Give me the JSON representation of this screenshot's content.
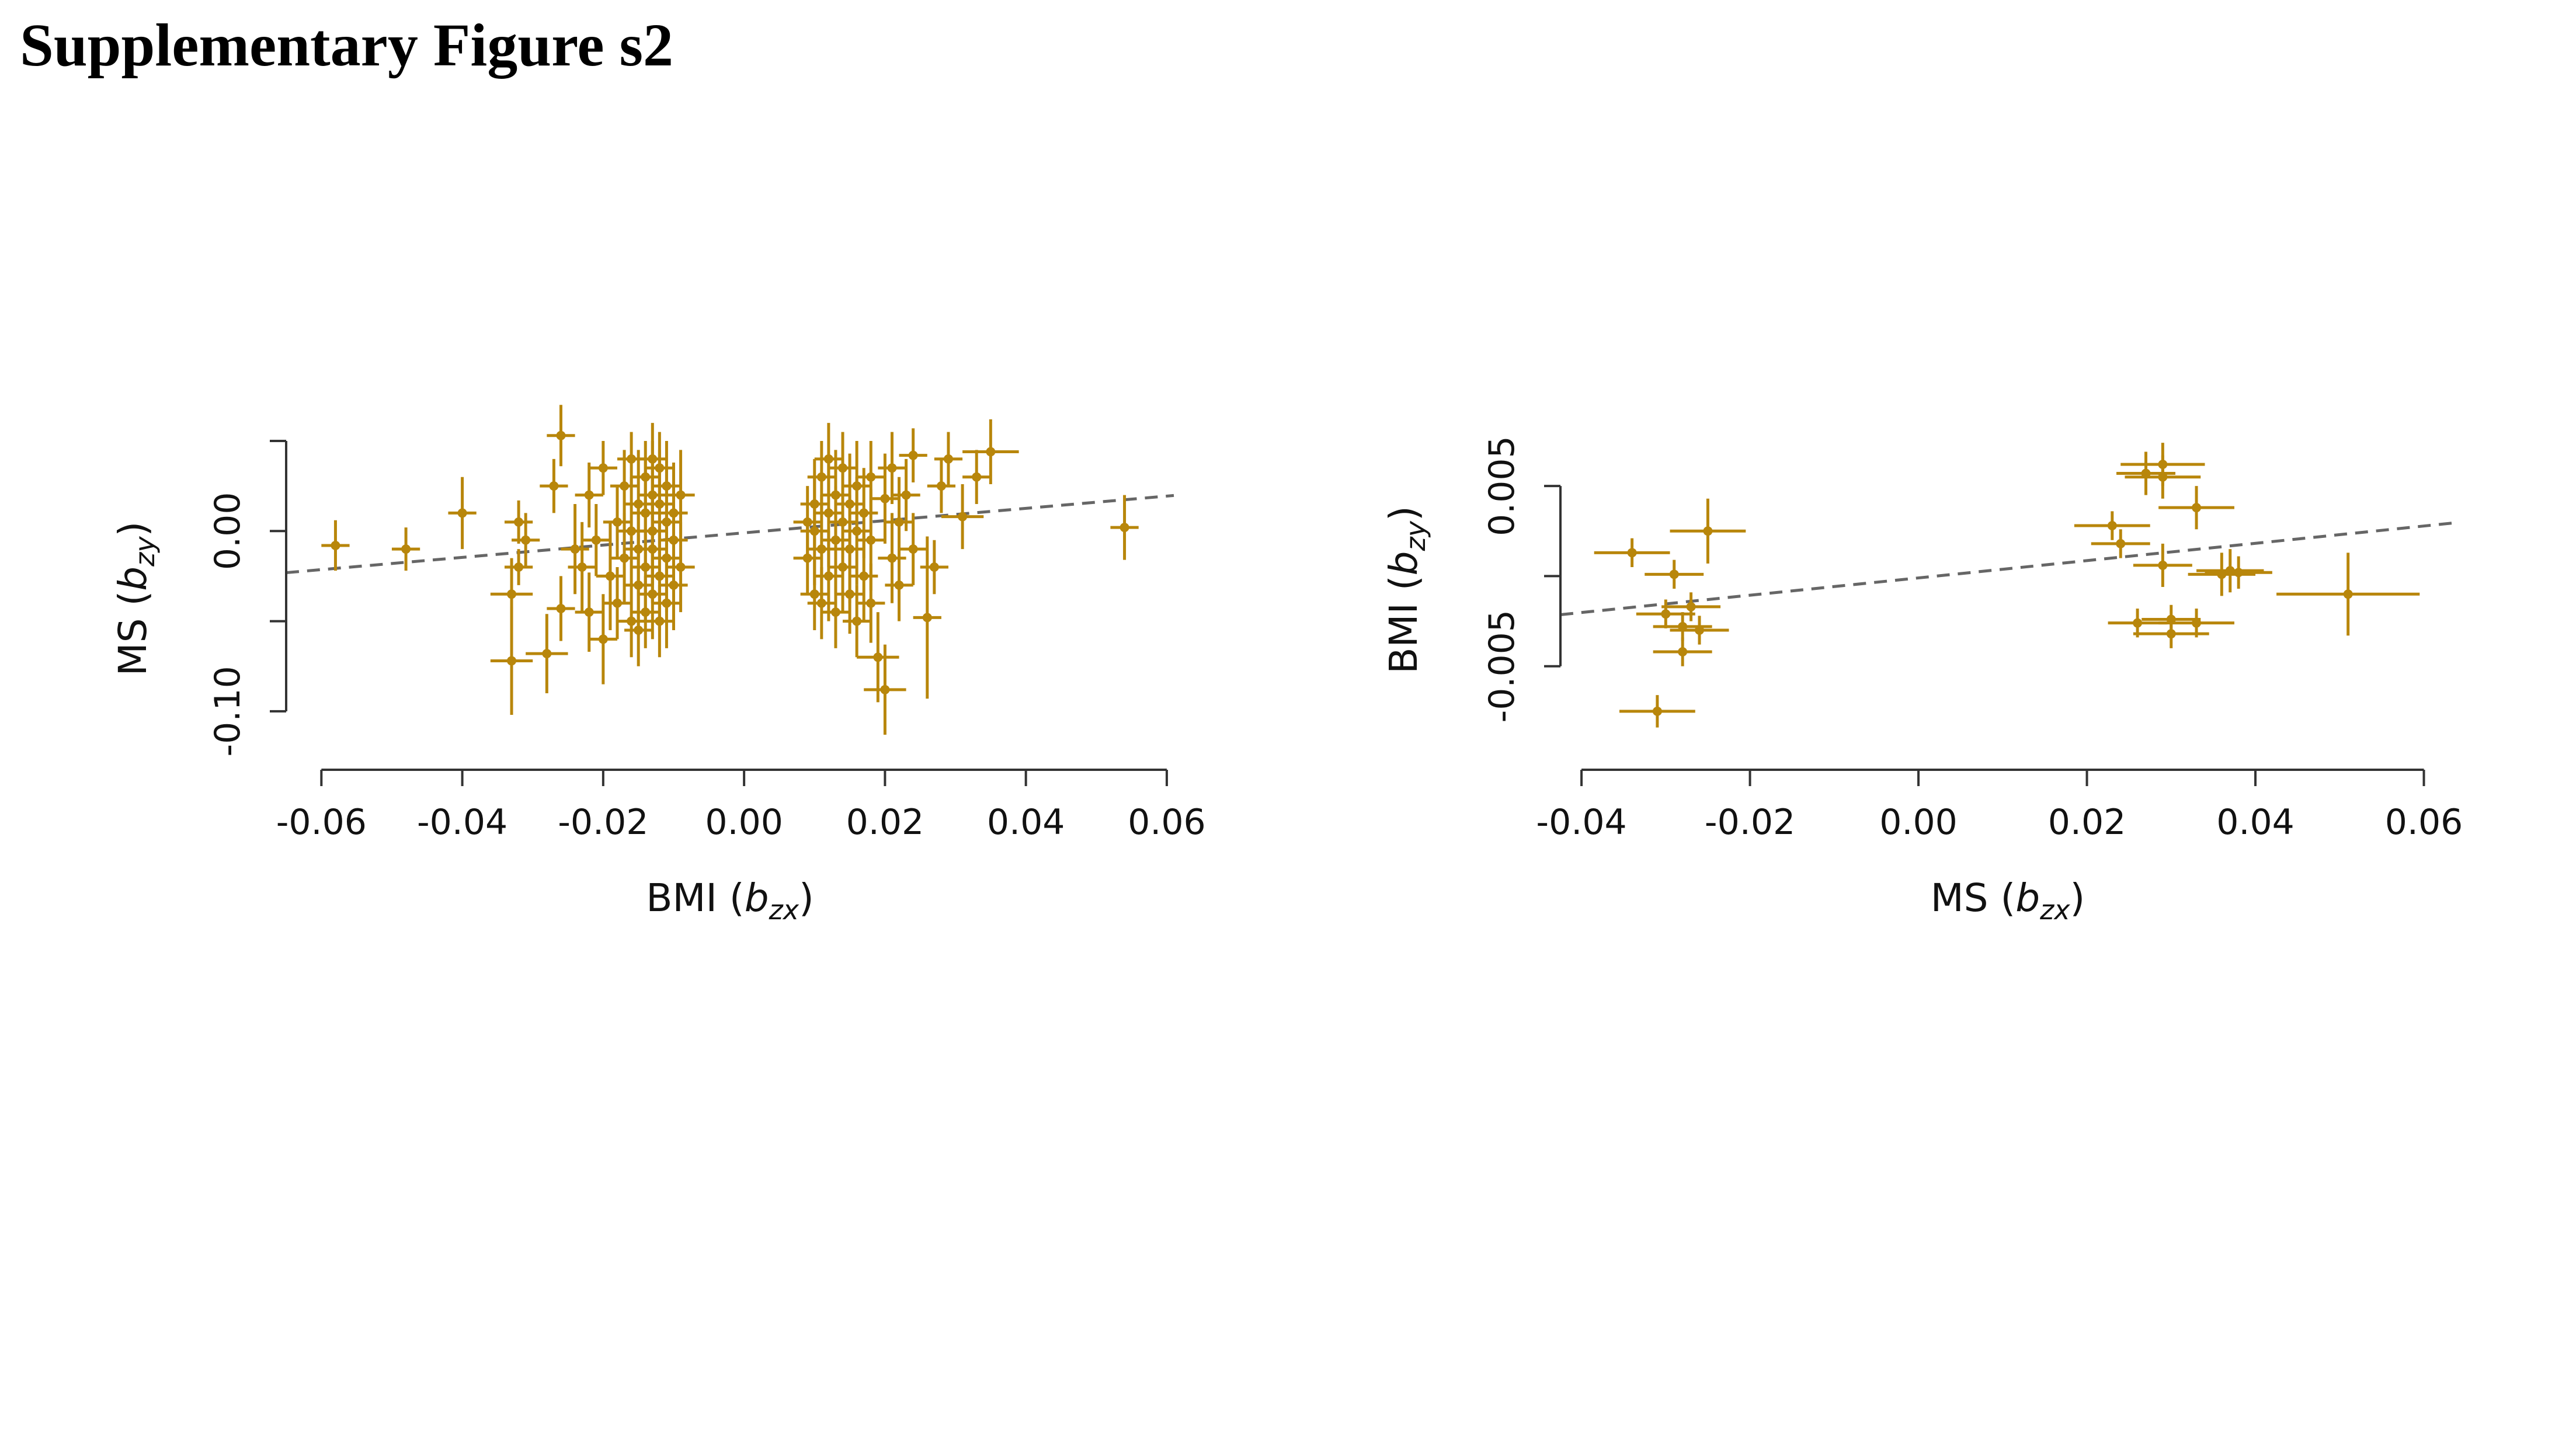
{
  "figure_title": "Supplementary Figure s2",
  "colors": {
    "points": "#b8860b",
    "fit_line": "#666666",
    "axis": "#333333"
  },
  "chart_data": [
    {
      "type": "scatter",
      "xlabel_main": "BMI",
      "xlabel_sub": "zx",
      "ylabel_main": "MS",
      "ylabel_sub": "zy",
      "xlim": [
        -0.065,
        0.061
      ],
      "ylim": [
        -0.125,
        0.05
      ],
      "xticks": [
        -0.06,
        -0.04,
        -0.02,
        0.0,
        0.02,
        0.04,
        0.06
      ],
      "xtick_labels": [
        "-0.06",
        "-0.04",
        "-0.02",
        "0.00",
        "0.02",
        "0.04",
        "0.06"
      ],
      "yticks": [
        -0.1,
        -0.05,
        0.0,
        0.05
      ],
      "ytick_labels": [
        "-0.10",
        "",
        "0.00",
        ""
      ],
      "grid": false,
      "fit_line": {
        "slope": 0.34,
        "intercept": -0.001
      },
      "points": [
        {
          "x": -0.058,
          "y": -0.008,
          "xe": 0.002,
          "ye": 0.014
        },
        {
          "x": -0.048,
          "y": -0.01,
          "xe": 0.002,
          "ye": 0.012
        },
        {
          "x": -0.04,
          "y": 0.01,
          "xe": 0.002,
          "ye": 0.02
        },
        {
          "x": -0.033,
          "y": -0.072,
          "xe": 0.003,
          "ye": 0.03
        },
        {
          "x": -0.033,
          "y": -0.035,
          "xe": 0.003,
          "ye": 0.02
        },
        {
          "x": -0.032,
          "y": 0.005,
          "xe": 0.002,
          "ye": 0.012
        },
        {
          "x": -0.032,
          "y": -0.02,
          "xe": 0.002,
          "ye": 0.01
        },
        {
          "x": -0.031,
          "y": -0.005,
          "xe": 0.002,
          "ye": 0.015
        },
        {
          "x": -0.028,
          "y": -0.068,
          "xe": 0.003,
          "ye": 0.022
        },
        {
          "x": -0.027,
          "y": 0.025,
          "xe": 0.002,
          "ye": 0.015
        },
        {
          "x": -0.026,
          "y": 0.053,
          "xe": 0.002,
          "ye": 0.017
        },
        {
          "x": -0.026,
          "y": -0.043,
          "xe": 0.002,
          "ye": 0.018
        },
        {
          "x": -0.024,
          "y": -0.01,
          "xe": 0.002,
          "ye": 0.025
        },
        {
          "x": -0.023,
          "y": -0.02,
          "xe": 0.002,
          "ye": 0.025
        },
        {
          "x": -0.022,
          "y": 0.02,
          "xe": 0.002,
          "ye": 0.018
        },
        {
          "x": -0.022,
          "y": -0.045,
          "xe": 0.002,
          "ye": 0.022
        },
        {
          "x": -0.021,
          "y": -0.005,
          "xe": 0.002,
          "ye": 0.02
        },
        {
          "x": -0.02,
          "y": -0.06,
          "xe": 0.002,
          "ye": 0.025
        },
        {
          "x": -0.02,
          "y": 0.035,
          "xe": 0.002,
          "ye": 0.015
        },
        {
          "x": -0.019,
          "y": -0.025,
          "xe": 0.002,
          "ye": 0.03
        },
        {
          "x": -0.018,
          "y": 0.005,
          "xe": 0.002,
          "ye": 0.02
        },
        {
          "x": -0.018,
          "y": -0.04,
          "xe": 0.002,
          "ye": 0.02
        },
        {
          "x": -0.017,
          "y": 0.025,
          "xe": 0.002,
          "ye": 0.02
        },
        {
          "x": -0.017,
          "y": -0.015,
          "xe": 0.002,
          "ye": 0.025
        },
        {
          "x": -0.016,
          "y": 0.04,
          "xe": 0.002,
          "ye": 0.015
        },
        {
          "x": -0.016,
          "y": -0.05,
          "xe": 0.002,
          "ye": 0.02
        },
        {
          "x": -0.016,
          "y": 0.0,
          "xe": 0.002,
          "ye": 0.03
        },
        {
          "x": -0.015,
          "y": 0.015,
          "xe": 0.002,
          "ye": 0.03
        },
        {
          "x": -0.015,
          "y": -0.03,
          "xe": 0.002,
          "ye": 0.028
        },
        {
          "x": -0.015,
          "y": -0.01,
          "xe": 0.002,
          "ye": 0.025
        },
        {
          "x": -0.014,
          "y": 0.03,
          "xe": 0.002,
          "ye": 0.02
        },
        {
          "x": -0.014,
          "y": -0.045,
          "xe": 0.002,
          "ye": 0.02
        },
        {
          "x": -0.014,
          "y": 0.01,
          "xe": 0.002,
          "ye": 0.03
        },
        {
          "x": -0.014,
          "y": -0.02,
          "xe": 0.002,
          "ye": 0.03
        },
        {
          "x": -0.013,
          "y": 0.02,
          "xe": 0.002,
          "ye": 0.03
        },
        {
          "x": -0.013,
          "y": -0.035,
          "xe": 0.002,
          "ye": 0.025
        },
        {
          "x": -0.013,
          "y": 0.0,
          "xe": 0.002,
          "ye": 0.03
        },
        {
          "x": -0.013,
          "y": -0.01,
          "xe": 0.002,
          "ye": 0.03
        },
        {
          "x": -0.012,
          "y": 0.035,
          "xe": 0.002,
          "ye": 0.02
        },
        {
          "x": -0.012,
          "y": -0.05,
          "xe": 0.002,
          "ye": 0.02
        },
        {
          "x": -0.012,
          "y": 0.015,
          "xe": 0.002,
          "ye": 0.03
        },
        {
          "x": -0.012,
          "y": -0.025,
          "xe": 0.002,
          "ye": 0.03
        },
        {
          "x": -0.011,
          "y": 0.005,
          "xe": 0.002,
          "ye": 0.03
        },
        {
          "x": -0.011,
          "y": -0.04,
          "xe": 0.002,
          "ye": 0.025
        },
        {
          "x": -0.011,
          "y": 0.025,
          "xe": 0.002,
          "ye": 0.025
        },
        {
          "x": -0.011,
          "y": -0.015,
          "xe": 0.002,
          "ye": 0.03
        },
        {
          "x": -0.01,
          "y": 0.01,
          "xe": 0.002,
          "ye": 0.028
        },
        {
          "x": -0.01,
          "y": -0.03,
          "xe": 0.002,
          "ye": 0.025
        },
        {
          "x": -0.01,
          "y": -0.005,
          "xe": 0.002,
          "ye": 0.028
        },
        {
          "x": -0.009,
          "y": 0.02,
          "xe": 0.002,
          "ye": 0.025
        },
        {
          "x": -0.009,
          "y": -0.02,
          "xe": 0.002,
          "ye": 0.025
        },
        {
          "x": -0.013,
          "y": 0.04,
          "xe": 0.002,
          "ye": 0.02
        },
        {
          "x": -0.015,
          "y": -0.055,
          "xe": 0.002,
          "ye": 0.02
        },
        {
          "x": 0.009,
          "y": 0.005,
          "xe": 0.002,
          "ye": 0.02
        },
        {
          "x": 0.009,
          "y": -0.015,
          "xe": 0.002,
          "ye": 0.02
        },
        {
          "x": 0.01,
          "y": 0.015,
          "xe": 0.002,
          "ye": 0.025
        },
        {
          "x": 0.01,
          "y": -0.035,
          "xe": 0.002,
          "ye": 0.02
        },
        {
          "x": 0.01,
          "y": 0.0,
          "xe": 0.002,
          "ye": 0.03
        },
        {
          "x": 0.011,
          "y": 0.03,
          "xe": 0.002,
          "ye": 0.02
        },
        {
          "x": 0.011,
          "y": -0.01,
          "xe": 0.002,
          "ye": 0.03
        },
        {
          "x": 0.011,
          "y": -0.04,
          "xe": 0.002,
          "ye": 0.02
        },
        {
          "x": 0.012,
          "y": 0.01,
          "xe": 0.002,
          "ye": 0.03
        },
        {
          "x": 0.012,
          "y": -0.025,
          "xe": 0.002,
          "ye": 0.025
        },
        {
          "x": 0.012,
          "y": 0.04,
          "xe": 0.002,
          "ye": 0.02
        },
        {
          "x": 0.013,
          "y": -0.005,
          "xe": 0.002,
          "ye": 0.03
        },
        {
          "x": 0.013,
          "y": 0.02,
          "xe": 0.002,
          "ye": 0.025
        },
        {
          "x": 0.013,
          "y": -0.045,
          "xe": 0.002,
          "ye": 0.02
        },
        {
          "x": 0.014,
          "y": 0.005,
          "xe": 0.002,
          "ye": 0.03
        },
        {
          "x": 0.014,
          "y": -0.02,
          "xe": 0.002,
          "ye": 0.025
        },
        {
          "x": 0.014,
          "y": 0.035,
          "xe": 0.002,
          "ye": 0.02
        },
        {
          "x": 0.015,
          "y": -0.01,
          "xe": 0.002,
          "ye": 0.03
        },
        {
          "x": 0.015,
          "y": 0.015,
          "xe": 0.002,
          "ye": 0.028
        },
        {
          "x": 0.015,
          "y": -0.035,
          "xe": 0.002,
          "ye": 0.022
        },
        {
          "x": 0.016,
          "y": 0.025,
          "xe": 0.002,
          "ye": 0.025
        },
        {
          "x": 0.016,
          "y": 0.0,
          "xe": 0.002,
          "ye": 0.03
        },
        {
          "x": 0.016,
          "y": -0.05,
          "xe": 0.002,
          "ye": 0.02
        },
        {
          "x": 0.017,
          "y": 0.01,
          "xe": 0.002,
          "ye": 0.025
        },
        {
          "x": 0.017,
          "y": -0.025,
          "xe": 0.002,
          "ye": 0.025
        },
        {
          "x": 0.018,
          "y": 0.03,
          "xe": 0.002,
          "ye": 0.02
        },
        {
          "x": 0.018,
          "y": -0.005,
          "xe": 0.002,
          "ye": 0.028
        },
        {
          "x": 0.018,
          "y": -0.04,
          "xe": 0.002,
          "ye": 0.022
        },
        {
          "x": 0.019,
          "y": -0.07,
          "xe": 0.003,
          "ye": 0.025
        },
        {
          "x": 0.02,
          "y": -0.088,
          "xe": 0.003,
          "ye": 0.025
        },
        {
          "x": 0.02,
          "y": 0.018,
          "xe": 0.002,
          "ye": 0.025
        },
        {
          "x": 0.021,
          "y": -0.015,
          "xe": 0.002,
          "ye": 0.025
        },
        {
          "x": 0.021,
          "y": 0.035,
          "xe": 0.002,
          "ye": 0.02
        },
        {
          "x": 0.022,
          "y": 0.005,
          "xe": 0.002,
          "ye": 0.025
        },
        {
          "x": 0.022,
          "y": -0.03,
          "xe": 0.002,
          "ye": 0.02
        },
        {
          "x": 0.023,
          "y": 0.02,
          "xe": 0.002,
          "ye": 0.02
        },
        {
          "x": 0.024,
          "y": 0.042,
          "xe": 0.002,
          "ye": 0.015
        },
        {
          "x": 0.024,
          "y": -0.01,
          "xe": 0.002,
          "ye": 0.02
        },
        {
          "x": 0.026,
          "y": -0.048,
          "xe": 0.002,
          "ye": 0.045
        },
        {
          "x": 0.027,
          "y": -0.02,
          "xe": 0.002,
          "ye": 0.015
        },
        {
          "x": 0.028,
          "y": 0.025,
          "xe": 0.002,
          "ye": 0.015
        },
        {
          "x": 0.029,
          "y": 0.04,
          "xe": 0.002,
          "ye": 0.015
        },
        {
          "x": 0.031,
          "y": 0.008,
          "xe": 0.003,
          "ye": 0.018
        },
        {
          "x": 0.033,
          "y": 0.03,
          "xe": 0.002,
          "ye": 0.015
        },
        {
          "x": 0.035,
          "y": 0.044,
          "xe": 0.004,
          "ye": 0.018
        },
        {
          "x": 0.054,
          "y": 0.002,
          "xe": 0.002,
          "ye": 0.018
        }
      ]
    },
    {
      "type": "scatter",
      "xlabel_main": "MS",
      "xlabel_sub": "zx",
      "ylabel_main": "BMI",
      "ylabel_sub": "zy",
      "xlim": [
        -0.0425,
        0.0635
      ],
      "ylim": [
        -0.01,
        0.0075
      ],
      "xticks": [
        -0.04,
        -0.02,
        0.0,
        0.02,
        0.04,
        0.06
      ],
      "xtick_labels": [
        "-0.04",
        "-0.02",
        "0.00",
        "0.02",
        "0.04",
        "0.06"
      ],
      "yticks": [
        -0.005,
        0.0,
        0.005
      ],
      "ytick_labels": [
        "-0.005",
        "",
        "0.005"
      ],
      "grid": false,
      "fit_line": {
        "slope": 0.048,
        "intercept": -0.0001
      },
      "points": [
        {
          "x": -0.034,
          "y": 0.0013,
          "xe": 0.0045,
          "ye": 0.0008
        },
        {
          "x": -0.031,
          "y": -0.0075,
          "xe": 0.0045,
          "ye": 0.0009
        },
        {
          "x": -0.03,
          "y": -0.0021,
          "xe": 0.0035,
          "ye": 0.0008
        },
        {
          "x": -0.029,
          "y": 0.0001,
          "xe": 0.0035,
          "ye": 0.0008
        },
        {
          "x": -0.028,
          "y": -0.0028,
          "xe": 0.0035,
          "ye": 0.0008
        },
        {
          "x": -0.028,
          "y": -0.0042,
          "xe": 0.0035,
          "ye": 0.0008
        },
        {
          "x": -0.027,
          "y": -0.0017,
          "xe": 0.0035,
          "ye": 0.0008
        },
        {
          "x": -0.026,
          "y": -0.003,
          "xe": 0.0035,
          "ye": 0.0008
        },
        {
          "x": -0.025,
          "y": 0.0025,
          "xe": 0.0045,
          "ye": 0.0018
        },
        {
          "x": 0.023,
          "y": 0.0028,
          "xe": 0.0045,
          "ye": 0.0008
        },
        {
          "x": 0.024,
          "y": 0.0018,
          "xe": 0.0035,
          "ye": 0.0008
        },
        {
          "x": 0.026,
          "y": -0.0026,
          "xe": 0.0035,
          "ye": 0.0008
        },
        {
          "x": 0.027,
          "y": 0.0057,
          "xe": 0.0035,
          "ye": 0.0012
        },
        {
          "x": 0.029,
          "y": 0.0055,
          "xe": 0.0045,
          "ye": 0.0012
        },
        {
          "x": 0.029,
          "y": 0.0062,
          "xe": 0.005,
          "ye": 0.0012
        },
        {
          "x": 0.029,
          "y": 0.0006,
          "xe": 0.0035,
          "ye": 0.0012
        },
        {
          "x": 0.03,
          "y": -0.0024,
          "xe": 0.0035,
          "ye": 0.0008
        },
        {
          "x": 0.03,
          "y": -0.0032,
          "xe": 0.0045,
          "ye": 0.0008
        },
        {
          "x": 0.033,
          "y": -0.0026,
          "xe": 0.0045,
          "ye": 0.0008
        },
        {
          "x": 0.033,
          "y": 0.0038,
          "xe": 0.0045,
          "ye": 0.0012
        },
        {
          "x": 0.036,
          "y": 0.0001,
          "xe": 0.004,
          "ye": 0.0012
        },
        {
          "x": 0.037,
          "y": 0.0003,
          "xe": 0.004,
          "ye": 0.0012
        },
        {
          "x": 0.038,
          "y": 0.0002,
          "xe": 0.004,
          "ye": 0.0009
        },
        {
          "x": 0.051,
          "y": -0.001,
          "xe": 0.0085,
          "ye": 0.0023
        }
      ]
    }
  ]
}
